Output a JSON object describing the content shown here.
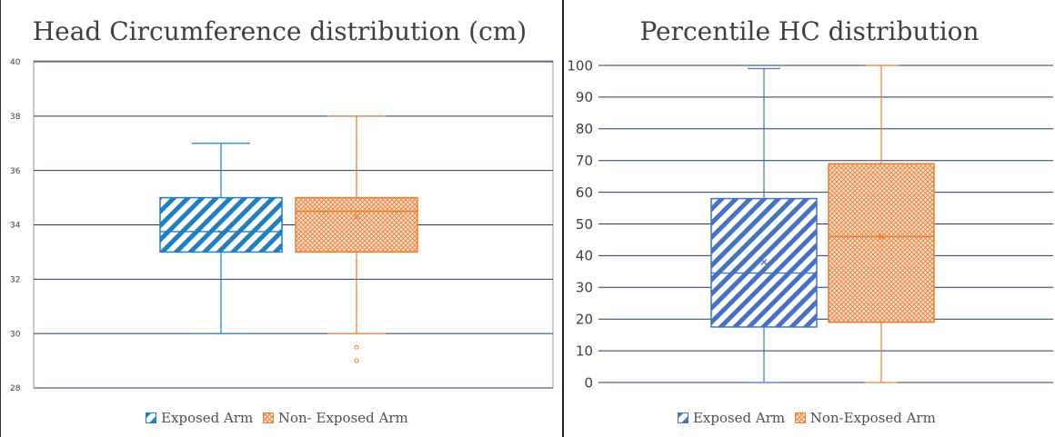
{
  "colors": {
    "exposed": "#1f7fc1",
    "exposed_right": "#4472c4",
    "non_exposed": "#ed7d31",
    "gridline": "#1f3b5c",
    "text": "#404040"
  },
  "legend": {
    "left": [
      "Exposed Arm",
      "Non- Exposed Arm"
    ],
    "right": [
      "Exposed Arm",
      "Non-Exposed Arm"
    ]
  },
  "chart_data": [
    {
      "type": "box",
      "title": "Head Circumference distribution (cm)",
      "xlabel": "",
      "ylabel": "",
      "ylim": [
        28,
        40
      ],
      "yticks": [
        "28",
        "30",
        "32",
        "34",
        "36",
        "38",
        "40"
      ],
      "grid": true,
      "legend_position": "bottom",
      "series": [
        {
          "name": "Exposed Arm",
          "min": 30,
          "q1": 33,
          "median": 33.75,
          "q3": 35,
          "max": 37,
          "mean": 33.7,
          "outliers": []
        },
        {
          "name": "Non- Exposed Arm",
          "min": 30,
          "q1": 33,
          "median": 34.5,
          "q3": 35,
          "max": 38,
          "mean": 34.3,
          "outliers": [
            29.5,
            29
          ]
        }
      ]
    },
    {
      "type": "box",
      "title": "Percentile HC distribution",
      "xlabel": "",
      "ylabel": "",
      "ylim": [
        0,
        100
      ],
      "yticks": [
        "0",
        "10",
        "20",
        "30",
        "40",
        "50",
        "60",
        "70",
        "80",
        "90",
        "100"
      ],
      "grid": true,
      "legend_position": "bottom",
      "series": [
        {
          "name": "Exposed Arm",
          "min": 0,
          "q1": 17.5,
          "median": 34.5,
          "q3": 58,
          "max": 99,
          "mean": 38,
          "outliers": []
        },
        {
          "name": "Non-Exposed Arm",
          "min": 0,
          "q1": 19,
          "median": 46,
          "q3": 69,
          "max": 100,
          "mean": 46,
          "outliers": []
        }
      ]
    }
  ]
}
